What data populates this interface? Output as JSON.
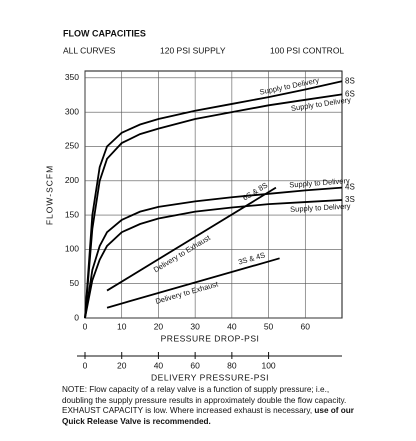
{
  "chart_data": {
    "type": "line",
    "title": "FLOW CAPACITIES",
    "subtitles": [
      "ALL CURVES",
      "120 PSI SUPPLY",
      "100 PSI CONTROL"
    ],
    "ylabel": "FLOW-SCFM",
    "xlabel": "PRESSURE DROP-PSI",
    "x2label": "DELIVERY PRESSURE-PSI",
    "xlim": [
      0,
      70
    ],
    "xticks": [
      0,
      10,
      20,
      30,
      40,
      50,
      60
    ],
    "x2lim": [
      0,
      140
    ],
    "x2ticks": [
      0,
      20,
      40,
      60,
      80,
      100
    ],
    "ylim": [
      0,
      360
    ],
    "yticks": [
      0,
      50,
      100,
      150,
      200,
      250,
      300,
      350
    ],
    "grid": true,
    "series": [
      {
        "name": "8S",
        "curve_label": "Supply to Delivery",
        "color": "#000000",
        "x": [
          0,
          2,
          4,
          6,
          10,
          15,
          20,
          30,
          40,
          50,
          60,
          70
        ],
        "values": [
          0,
          150,
          220,
          250,
          270,
          282,
          290,
          302,
          312,
          322,
          333,
          345
        ]
      },
      {
        "name": "6S",
        "curve_label": "Supply to Delivery",
        "color": "#000000",
        "x": [
          0,
          2,
          4,
          6,
          10,
          15,
          20,
          30,
          40,
          50,
          60,
          70
        ],
        "values": [
          0,
          130,
          200,
          232,
          255,
          268,
          276,
          290,
          300,
          310,
          318,
          326
        ]
      },
      {
        "name": "4S",
        "curve_label": "Supply to Delivery",
        "color": "#000000",
        "x": [
          0,
          2,
          4,
          6,
          10,
          15,
          20,
          30,
          40,
          50,
          60,
          70
        ],
        "values": [
          0,
          70,
          105,
          125,
          143,
          155,
          162,
          170,
          176,
          181,
          186,
          190
        ]
      },
      {
        "name": "3S",
        "curve_label": "Supply to Delivery",
        "color": "#000000",
        "x": [
          0,
          2,
          4,
          6,
          10,
          15,
          20,
          30,
          40,
          50,
          60,
          70
        ],
        "values": [
          0,
          55,
          85,
          105,
          125,
          137,
          145,
          155,
          161,
          166,
          169,
          172
        ]
      },
      {
        "name": "6S & 8S",
        "curve_label": "Delivery to Exhaust",
        "color": "#000000",
        "x": [
          6,
          52
        ],
        "values": [
          40,
          190
        ]
      },
      {
        "name": "3S & 4S",
        "curve_label": "Delivery to Exhaust",
        "color": "#000000",
        "x": [
          6,
          53
        ],
        "values": [
          15,
          87
        ]
      }
    ],
    "note": "NOTE: Flow capacity of a relay valve is a function of supply pressure; i.e., doubling the supply pressure results in approximately double the flow capacity. EXHAUST CAPACITY is low. Where increased exhaust is necessary,",
    "note_emphasis": "use of our Quick Release Valve is recommended."
  }
}
